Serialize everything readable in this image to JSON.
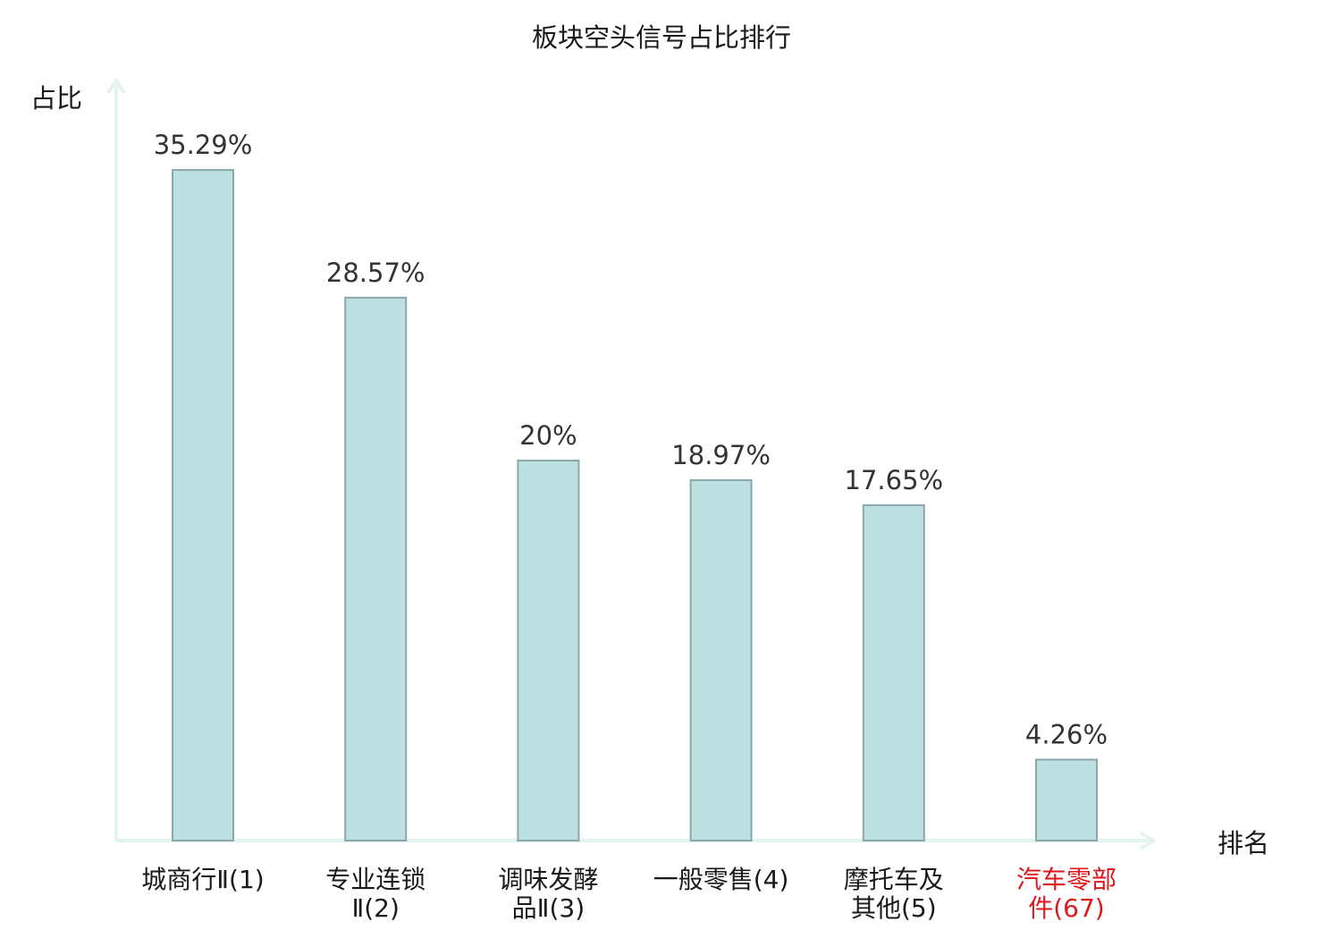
{
  "chart_data": {
    "type": "bar",
    "title": "板块空头信号占比排行",
    "xlabel": "排名",
    "ylabel": "占比",
    "categories": [
      [
        "城商行Ⅱ(1)"
      ],
      [
        "专业连锁",
        "Ⅱ(2)"
      ],
      [
        "调味发酵",
        "品Ⅱ(3)"
      ],
      [
        "一般零售(4)"
      ],
      [
        "摩托车及",
        "其他(5)"
      ],
      [
        "汽车零部",
        "件(67)"
      ]
    ],
    "values": [
      35.29,
      28.57,
      20,
      18.97,
      17.65,
      4.26
    ],
    "value_labels": [
      "35.29%",
      "28.57%",
      "20%",
      "18.97%",
      "17.65%",
      "4.26%"
    ],
    "highlight_index": 5,
    "ylim": [
      0,
      40
    ],
    "grid": false,
    "colors": {
      "bar_fill": "#bde0e2",
      "bar_stroke": "#8aa7a9",
      "axis": "#e2f3f1",
      "label_default": "#1a1a1a",
      "label_highlight": "#e0161d"
    }
  }
}
